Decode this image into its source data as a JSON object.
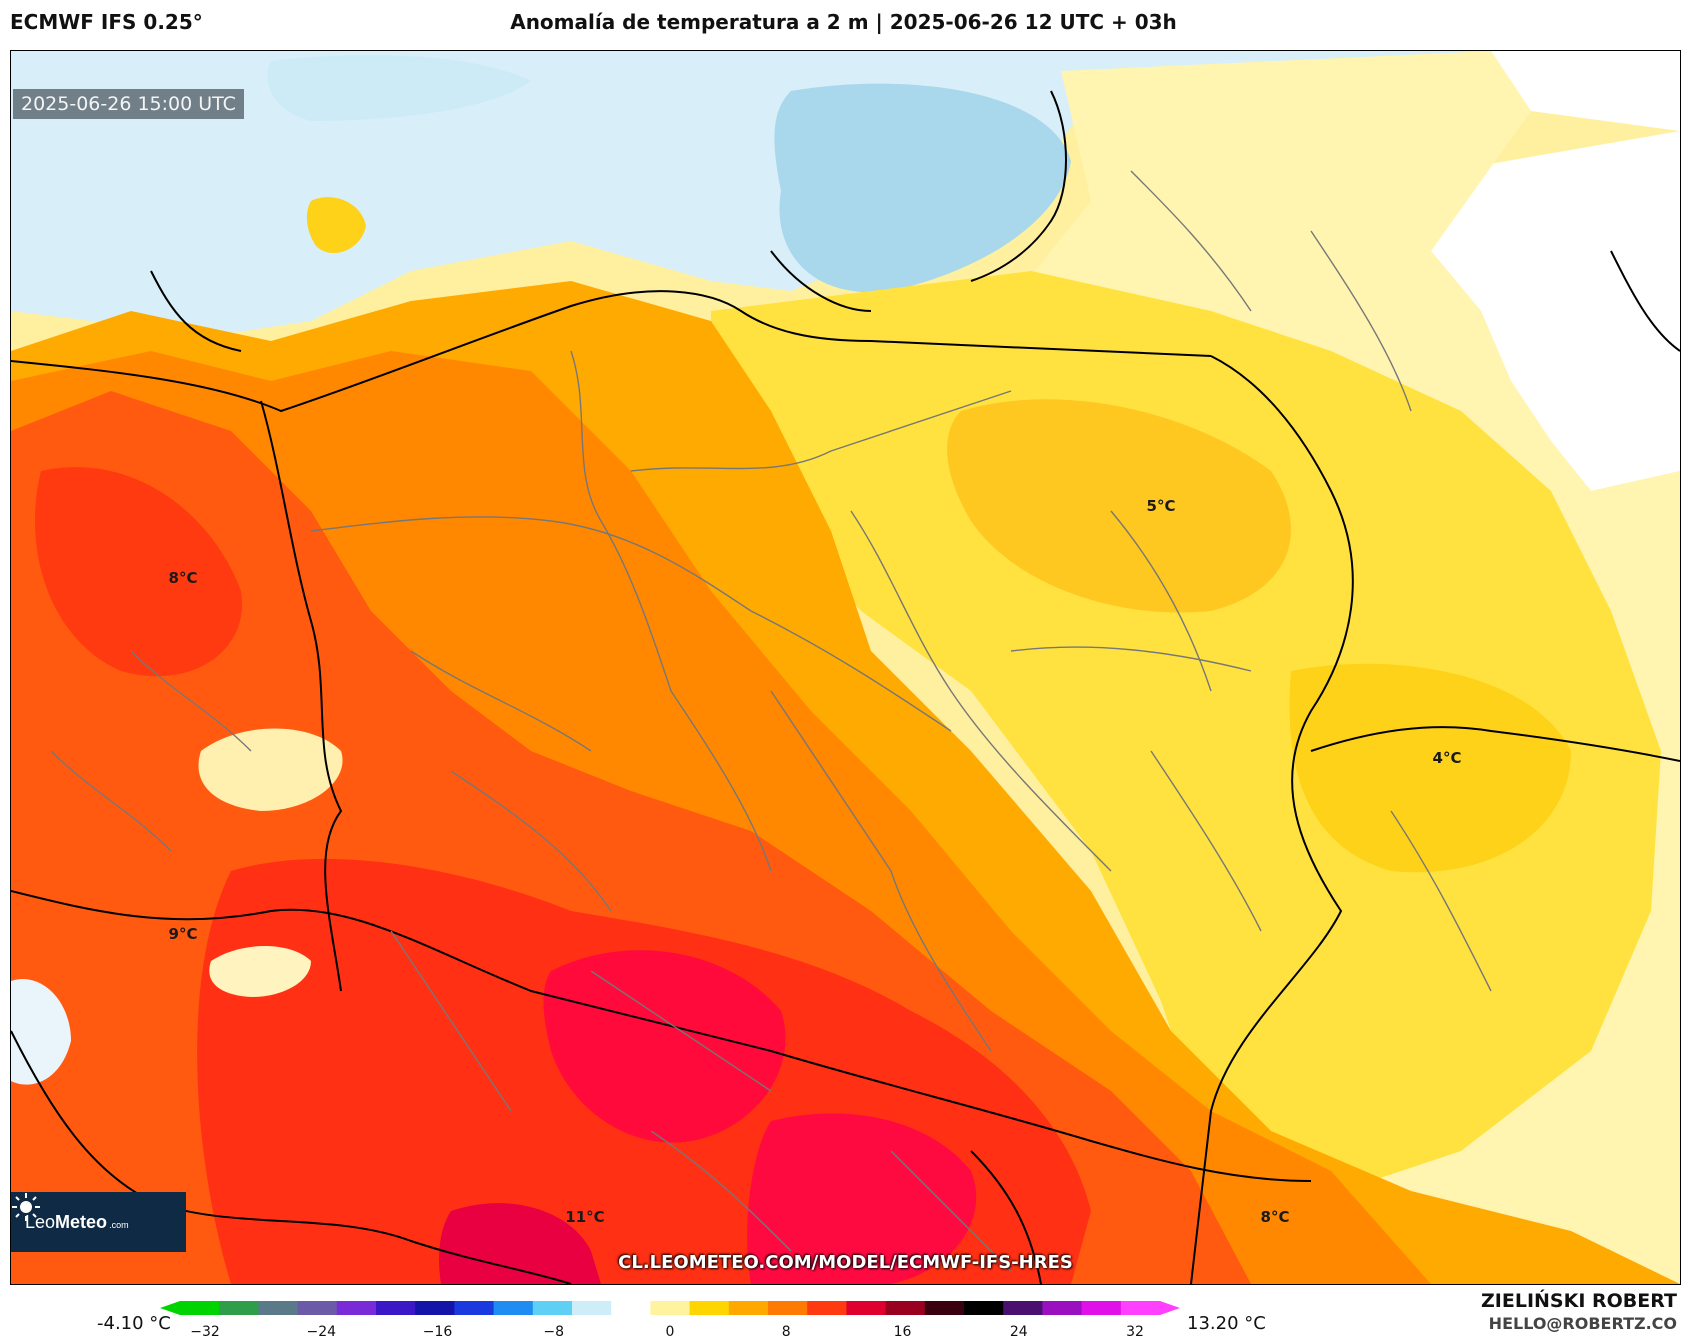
{
  "header": {
    "model": "ECMWF IFS 0.25°",
    "title": "Anomalía de temperatura a 2 m | 2025-06-26 12 UTC + 03h"
  },
  "map": {
    "valid_time": "2025-06-26 15:00 UTC",
    "url": "CL.LEOMETEO.COM/MODEL/ECMWF-IFS-HRES",
    "logo": {
      "brand_light": "Leo",
      "brand_bold": "Meteo",
      "suffix": ".com"
    },
    "labels": [
      {
        "text": "5°C"
      },
      {
        "text": "8°C"
      },
      {
        "text": "4°C"
      },
      {
        "text": "9°C"
      },
      {
        "text": "11°C"
      },
      {
        "text": "8°C"
      }
    ]
  },
  "colorbar": {
    "min_value": "-4.10 °C",
    "max_value": "13.20 °C",
    "ticks": [
      "−32",
      "−24",
      "−16",
      "−8",
      "0",
      "8",
      "16",
      "24",
      "32"
    ],
    "colors": [
      "#00d400",
      "#2f9e4a",
      "#5a7a8a",
      "#6b5aa8",
      "#7a2bd8",
      "#3a18c8",
      "#1414a8",
      "#1a3ae0",
      "#1e8cf0",
      "#5fd0f5",
      "#cdeef8",
      "#ffffff",
      "#fff3a0",
      "#ffd500",
      "#ffa800",
      "#ff7a00",
      "#ff3a10",
      "#e00030",
      "#9a0020",
      "#3a0010",
      "#000000",
      "#4a1070",
      "#9a10c0",
      "#e010e8",
      "#ff40ff"
    ]
  },
  "credits": {
    "author": "ZIELIŃSKI ROBERT",
    "email": "HELLO@ROBERTZ.CO"
  }
}
